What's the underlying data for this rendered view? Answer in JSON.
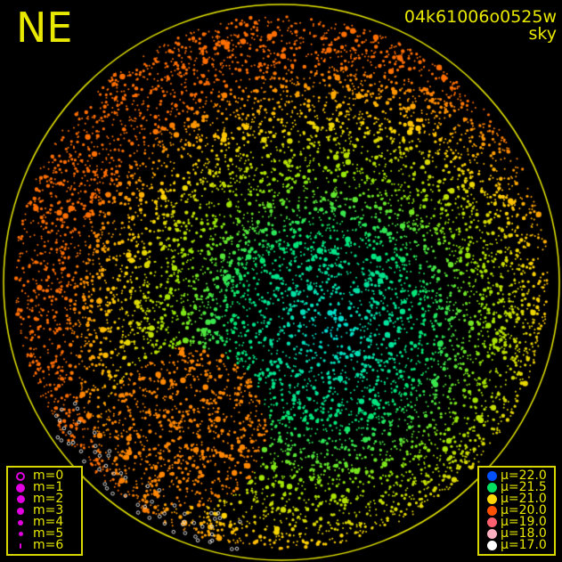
{
  "direction_label": "NE",
  "title": {
    "frame_id": "04k61006o0525w",
    "subtitle": "sky"
  },
  "colors": {
    "frame": "#e8e800",
    "background": "#000000"
  },
  "magnitude_legend": {
    "symbol_color": "#e000e0",
    "items": [
      {
        "label": "m=0",
        "hollow": true
      },
      {
        "label": "m=1"
      },
      {
        "label": "m=2"
      },
      {
        "label": "m=3"
      },
      {
        "label": "m=4"
      },
      {
        "label": "m=5"
      },
      {
        "label": "m=6"
      }
    ]
  },
  "brightness_legend": {
    "items": [
      {
        "label": "μ=22.0",
        "color": "#0050ff"
      },
      {
        "label": "μ=21.5",
        "color": "#00e060"
      },
      {
        "label": "μ=21.0",
        "color": "#ffd800"
      },
      {
        "label": "μ=20.0",
        "color": "#ff5000"
      },
      {
        "label": "μ=19.0",
        "color": "#ff6070"
      },
      {
        "label": "μ=18.0",
        "color": "#ffb0c0"
      },
      {
        "label": "μ=17.0",
        "color": "#ffffff"
      }
    ]
  }
}
